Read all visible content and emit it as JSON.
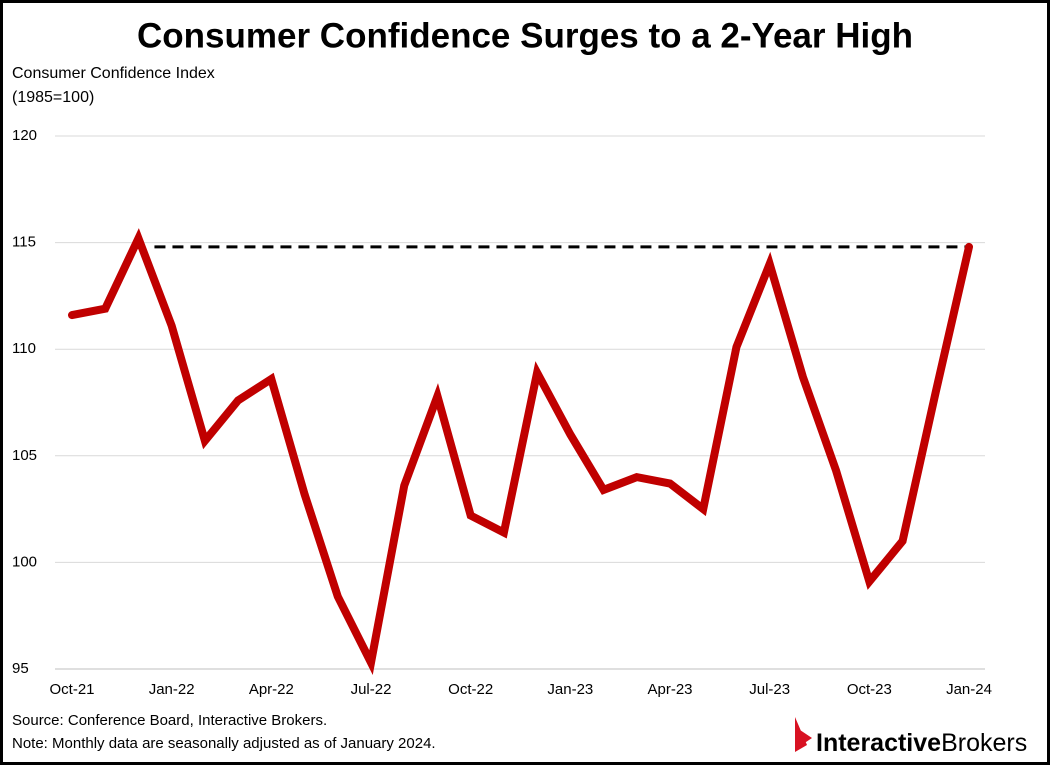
{
  "chart_data": {
    "type": "line",
    "title": "Consumer Confidence Surges to a 2-Year High",
    "y_label": [
      "Consumer Confidence Index",
      "(1985=100)"
    ],
    "categories": [
      "Oct-21",
      null,
      null,
      "Jan-22",
      null,
      null,
      "Apr-22",
      null,
      null,
      "Jul-22",
      null,
      null,
      "Oct-22",
      null,
      null,
      "Jan-23",
      null,
      null,
      "Apr-23",
      null,
      null,
      "Jul-23",
      null,
      null,
      "Oct-23",
      null,
      null,
      "Jan-24"
    ],
    "series": [
      {
        "name": "Consumer Confidence Index",
        "color": "#c00000",
        "values": [
          111.6,
          111.9,
          115.2,
          111.1,
          105.7,
          107.6,
          108.6,
          103.2,
          98.4,
          95.3,
          103.6,
          107.8,
          102.2,
          101.4,
          108.9,
          106.0,
          103.4,
          104.0,
          103.7,
          102.5,
          110.1,
          114.0,
          108.7,
          104.3,
          99.1,
          101.0,
          108.0,
          114.8
        ]
      }
    ],
    "reference_line": 114.8,
    "ylim": [
      95,
      120
    ],
    "yticks": [
      95,
      100,
      105,
      110,
      115,
      120
    ],
    "grid": true,
    "source": "Source: Conference Board, Interactive Brokers.",
    "note": "Note: Monthly data are seasonally adjusted as of January 2024.",
    "brand": [
      "Interactive",
      "Brokers"
    ]
  }
}
